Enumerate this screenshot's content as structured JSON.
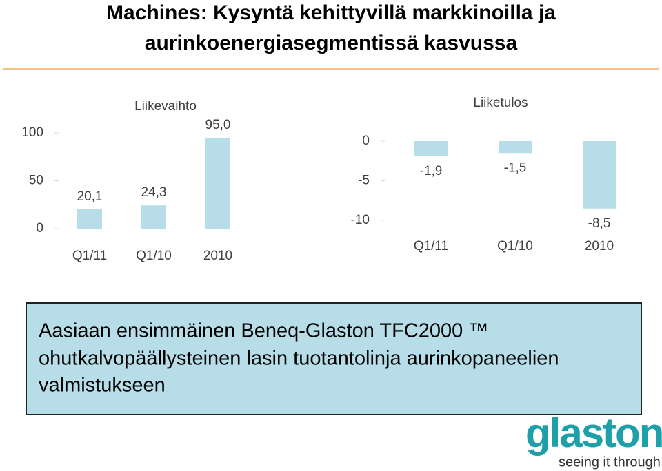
{
  "title": [
    "Machines: Kysyntä kehittyvillä markkinoilla ja",
    "aurinkoenergiasegmentissä kasvussa"
  ],
  "chart_data": [
    {
      "type": "bar",
      "title": "Liikevaihto",
      "categories": [
        "Q1/11",
        "Q1/10",
        "2010"
      ],
      "values": [
        20.1,
        24.3,
        95.0
      ],
      "value_labels": [
        "20,1",
        "24,3",
        "95,0"
      ],
      "color": "#b7dde8",
      "ylim": [
        0,
        100
      ],
      "yticks": [
        0,
        50,
        100
      ]
    },
    {
      "type": "bar",
      "title": "Liiketulos",
      "categories": [
        "Q1/11",
        "Q1/10",
        "2010"
      ],
      "values": [
        -1.9,
        -1.5,
        -8.5
      ],
      "value_labels": [
        "-1,9",
        "-1,5",
        "-8,5"
      ],
      "color": "#b7dde8",
      "ylim": [
        -10,
        0
      ],
      "yticks": [
        -10,
        -5,
        0
      ]
    }
  ],
  "note": [
    "Aasiaan ensimmäinen Beneq-Glaston TFC2000 ™",
    "ohutkalvopäällysteinen lasin tuotantolinja aurinkopaneelien",
    "valmistukseen"
  ],
  "logo": {
    "name": "glaston",
    "tagline": "seeing it through"
  }
}
